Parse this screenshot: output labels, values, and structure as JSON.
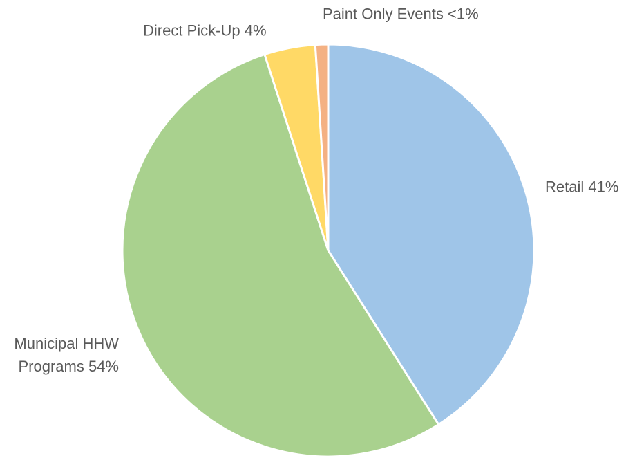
{
  "chart_data": {
    "type": "pie",
    "categories": [
      "Retail",
      "Municipal HHW Programs",
      "Direct Pick-Up",
      "Paint Only Events"
    ],
    "values": [
      41,
      54,
      4,
      1
    ],
    "value_labels": [
      "41%",
      "54%",
      "4%",
      "<1%"
    ],
    "colors": [
      "#9fc5e8",
      "#a9d18e",
      "#ffd966",
      "#f4b183"
    ]
  }
}
